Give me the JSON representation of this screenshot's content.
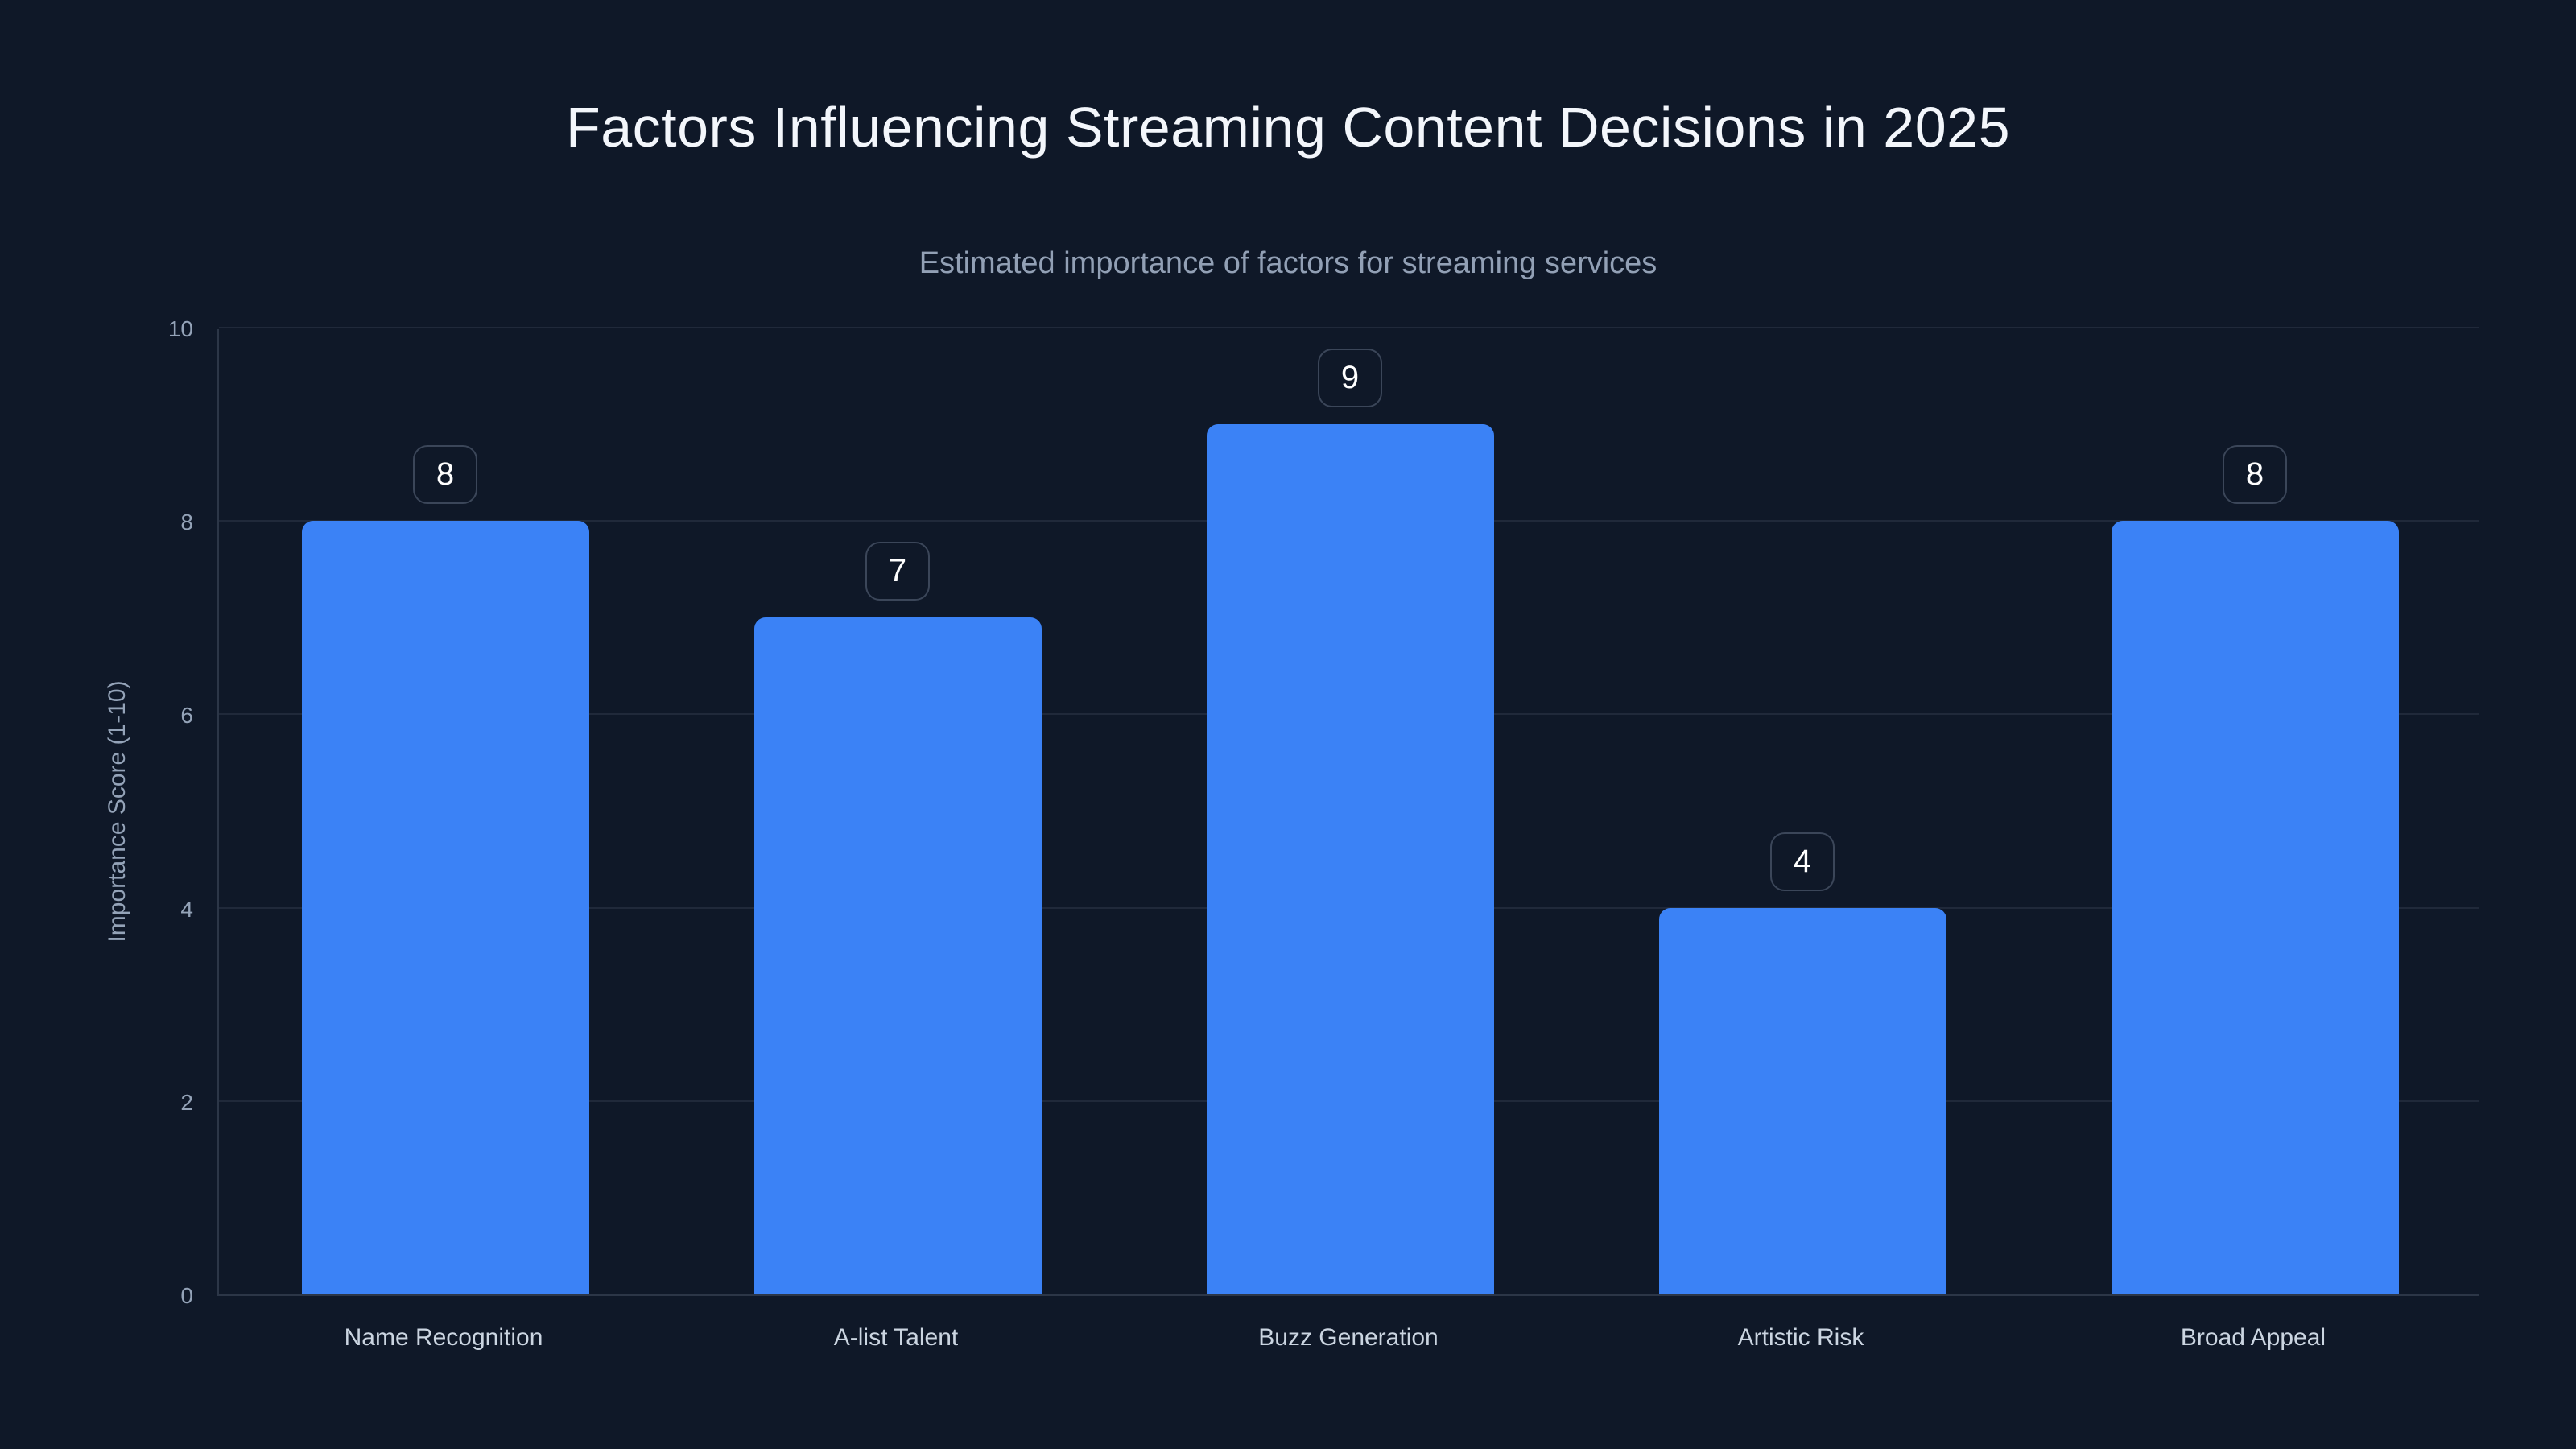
{
  "chart_data": {
    "type": "bar",
    "title": "Factors Influencing Streaming Content Decisions in 2025",
    "subtitle": "Estimated importance of factors for streaming services",
    "xlabel": "",
    "ylabel": "Importance Score (1-10)",
    "categories": [
      "Name Recognition",
      "A-list Talent",
      "Buzz Generation",
      "Artistic Risk",
      "Broad Appeal"
    ],
    "values": [
      8,
      7,
      9,
      4,
      8
    ],
    "value_labels": [
      "8",
      "7",
      "9",
      "4",
      "8"
    ],
    "ylim": [
      0,
      10
    ],
    "yticks": [
      0,
      2,
      4,
      6,
      8,
      10
    ],
    "grid": true,
    "legend": false
  },
  "colors": {
    "background": "#0f1828",
    "bar": "#3b82f6",
    "title": "#f3f6fb",
    "subtitle": "#92a0b5",
    "axis_label": "#94a3b8",
    "tick_label": "#94a3b8",
    "category_label": "#cbd5e1",
    "gridline": "rgba(148,163,184,0.13)",
    "axis_line": "rgba(148,163,184,0.22)",
    "badge_border": "#3b4659",
    "badge_text": "#ffffff"
  }
}
